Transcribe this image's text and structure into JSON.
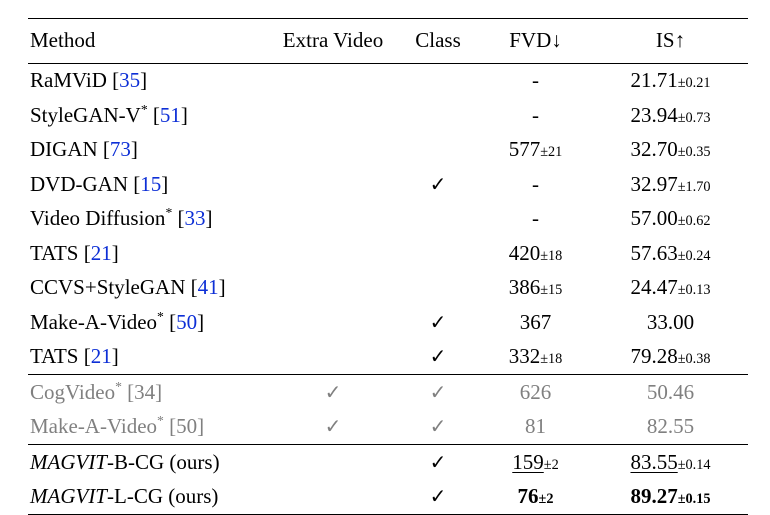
{
  "table": {
    "header": {
      "method": "Method",
      "extra": "Extra Video",
      "class": "Class",
      "fvd": "FVD↓",
      "is": "IS↑"
    },
    "group1": [
      {
        "name": "RaMViD",
        "star": false,
        "cite": "35",
        "extra": false,
        "class": false,
        "fvd": "-",
        "fvd_pm": "",
        "is": "21.71",
        "is_pm": "±0.21",
        "fvd_uline": false,
        "fvd_bold": false,
        "is_uline": false,
        "is_bold": false
      },
      {
        "name": "StyleGAN-V",
        "star": true,
        "cite": "51",
        "extra": false,
        "class": false,
        "fvd": "-",
        "fvd_pm": "",
        "is": "23.94",
        "is_pm": "±0.73",
        "fvd_uline": false,
        "fvd_bold": false,
        "is_uline": false,
        "is_bold": false
      },
      {
        "name": "DIGAN",
        "star": false,
        "cite": "73",
        "extra": false,
        "class": false,
        "fvd": "577",
        "fvd_pm": "±21",
        "is": "32.70",
        "is_pm": "±0.35",
        "fvd_uline": false,
        "fvd_bold": false,
        "is_uline": false,
        "is_bold": false
      },
      {
        "name": "DVD-GAN",
        "star": false,
        "cite": "15",
        "extra": false,
        "class": true,
        "fvd": "-",
        "fvd_pm": "",
        "is": "32.97",
        "is_pm": "±1.70",
        "fvd_uline": false,
        "fvd_bold": false,
        "is_uline": false,
        "is_bold": false
      },
      {
        "name": "Video Diffusion",
        "star": true,
        "cite": "33",
        "extra": false,
        "class": false,
        "fvd": "-",
        "fvd_pm": "",
        "is": "57.00",
        "is_pm": "±0.62",
        "fvd_uline": false,
        "fvd_bold": false,
        "is_uline": false,
        "is_bold": false
      },
      {
        "name": "TATS",
        "star": false,
        "cite": "21",
        "extra": false,
        "class": false,
        "fvd": "420",
        "fvd_pm": "±18",
        "is": "57.63",
        "is_pm": "±0.24",
        "fvd_uline": false,
        "fvd_bold": false,
        "is_uline": false,
        "is_bold": false
      },
      {
        "name": "CCVS+StyleGAN",
        "star": false,
        "cite": "41",
        "extra": false,
        "class": false,
        "fvd": "386",
        "fvd_pm": "±15",
        "is": "24.47",
        "is_pm": "±0.13",
        "fvd_uline": false,
        "fvd_bold": false,
        "is_uline": false,
        "is_bold": false
      },
      {
        "name": "Make-A-Video",
        "star": true,
        "cite": "50",
        "extra": false,
        "class": true,
        "fvd": "367",
        "fvd_pm": "",
        "is": "33.00",
        "is_pm": "",
        "fvd_uline": false,
        "fvd_bold": false,
        "is_uline": false,
        "is_bold": false
      },
      {
        "name": "TATS",
        "star": false,
        "cite": "21",
        "extra": false,
        "class": true,
        "fvd": "332",
        "fvd_pm": "±18",
        "is": "79.28",
        "is_pm": "±0.38",
        "fvd_uline": false,
        "fvd_bold": false,
        "is_uline": false,
        "is_bold": false
      }
    ],
    "group2": [
      {
        "name": "CogVideo",
        "star": true,
        "cite": "34",
        "extra": true,
        "class": true,
        "fvd": "626",
        "fvd_pm": "",
        "is": "50.46",
        "is_pm": "",
        "fvd_uline": false,
        "fvd_bold": false,
        "is_uline": false,
        "is_bold": false
      },
      {
        "name": "Make-A-Video",
        "star": true,
        "cite": "50",
        "extra": true,
        "class": true,
        "fvd": "81",
        "fvd_pm": "",
        "is": "82.55",
        "is_pm": "",
        "fvd_uline": false,
        "fvd_bold": false,
        "is_uline": false,
        "is_bold": false
      }
    ],
    "group3": [
      {
        "name_italic": "MAGVIT",
        "suffix": "-B-CG (ours)",
        "star": false,
        "cite": "",
        "extra": false,
        "class": true,
        "fvd": "159",
        "fvd_pm": "±2",
        "is": "83.55",
        "is_pm": "±0.14",
        "fvd_uline": true,
        "fvd_bold": false,
        "is_uline": true,
        "is_bold": false
      },
      {
        "name_italic": "MAGVIT",
        "suffix": "-L-CG (ours)",
        "star": false,
        "cite": "",
        "extra": false,
        "class": true,
        "fvd": "76",
        "fvd_pm": "±2",
        "is": "89.27",
        "is_pm": "±0.15",
        "fvd_uline": false,
        "fvd_bold": true,
        "is_uline": false,
        "is_bold": true
      }
    ],
    "check_glyph": "✓"
  }
}
